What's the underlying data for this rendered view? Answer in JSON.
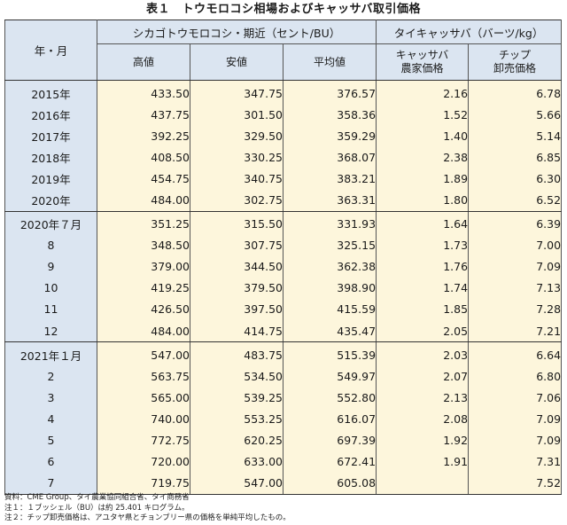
{
  "title": "表１　トウモロコシ相場およびキャッサバ取引価格",
  "headers": {
    "row_label": "年・月",
    "group1": "シカゴトウモロコシ・期近（セント/BU）",
    "group2": "タイキャッサバ（バーツ/kg）",
    "high": "高値",
    "low": "安値",
    "avg": "平均値",
    "farm_line1": "キャッサバ",
    "farm_line2": "農家価格",
    "chip_line1": "チップ",
    "chip_line2": "卸売価格"
  },
  "rows": [
    {
      "label": "2015年",
      "high": "433.50",
      "low": "347.75",
      "avg": "376.57",
      "farm": "2.16",
      "chip": "6.78"
    },
    {
      "label": "2016年",
      "high": "437.75",
      "low": "301.50",
      "avg": "358.36",
      "farm": "1.52",
      "chip": "5.66"
    },
    {
      "label": "2017年",
      "high": "392.25",
      "low": "329.50",
      "avg": "359.29",
      "farm": "1.40",
      "chip": "5.14"
    },
    {
      "label": "2018年",
      "high": "408.50",
      "low": "330.25",
      "avg": "368.07",
      "farm": "2.38",
      "chip": "6.85"
    },
    {
      "label": "2019年",
      "high": "454.75",
      "low": "340.75",
      "avg": "383.21",
      "farm": "1.89",
      "chip": "6.30"
    },
    {
      "label": "2020年",
      "high": "484.00",
      "low": "302.75",
      "avg": "363.31",
      "farm": "1.80",
      "chip": "6.52"
    },
    {
      "label": "2020年７月",
      "high": "351.25",
      "low": "315.50",
      "avg": "331.93",
      "farm": "1.64",
      "chip": "6.39"
    },
    {
      "label": "8",
      "high": "348.50",
      "low": "307.75",
      "avg": "325.15",
      "farm": "1.73",
      "chip": "7.00"
    },
    {
      "label": "9",
      "high": "379.00",
      "low": "344.50",
      "avg": "362.38",
      "farm": "1.76",
      "chip": "7.09"
    },
    {
      "label": "10",
      "high": "419.25",
      "low": "379.50",
      "avg": "398.90",
      "farm": "1.74",
      "chip": "7.13"
    },
    {
      "label": "11",
      "high": "426.50",
      "low": "397.50",
      "avg": "415.59",
      "farm": "1.85",
      "chip": "7.28"
    },
    {
      "label": "12",
      "high": "484.00",
      "low": "414.75",
      "avg": "435.47",
      "farm": "2.05",
      "chip": "7.21"
    },
    {
      "label": "2021年１月",
      "high": "547.00",
      "low": "483.75",
      "avg": "515.39",
      "farm": "2.03",
      "chip": "6.64"
    },
    {
      "label": "2",
      "high": "563.75",
      "low": "534.50",
      "avg": "549.97",
      "farm": "2.07",
      "chip": "6.80"
    },
    {
      "label": "3",
      "high": "565.00",
      "low": "539.25",
      "avg": "552.80",
      "farm": "2.13",
      "chip": "7.06"
    },
    {
      "label": "4",
      "high": "740.00",
      "low": "553.25",
      "avg": "616.07",
      "farm": "2.08",
      "chip": "7.09"
    },
    {
      "label": "5",
      "high": "772.75",
      "low": "620.25",
      "avg": "697.39",
      "farm": "1.92",
      "chip": "7.09"
    },
    {
      "label": "6",
      "high": "720.00",
      "low": "633.00",
      "avg": "672.41",
      "farm": "1.91",
      "chip": "7.31"
    },
    {
      "label": "7",
      "high": "719.75",
      "low": "547.00",
      "avg": "605.08",
      "farm": "",
      "chip": "7.52"
    }
  ],
  "notes": [
    "資料：CME Group、タイ農業協同組合省、タイ商務省",
    "注１：１ブッシェル（BU）は約 25.401 キログラム。",
    "注２：チップ卸売価格は、アユタヤ県とチョンブリー県の価格を単純平均したもの。"
  ],
  "colors": {
    "header_bg": "#dbe5f1",
    "cell_bg": "#fdf6dc",
    "border": "#333333"
  }
}
